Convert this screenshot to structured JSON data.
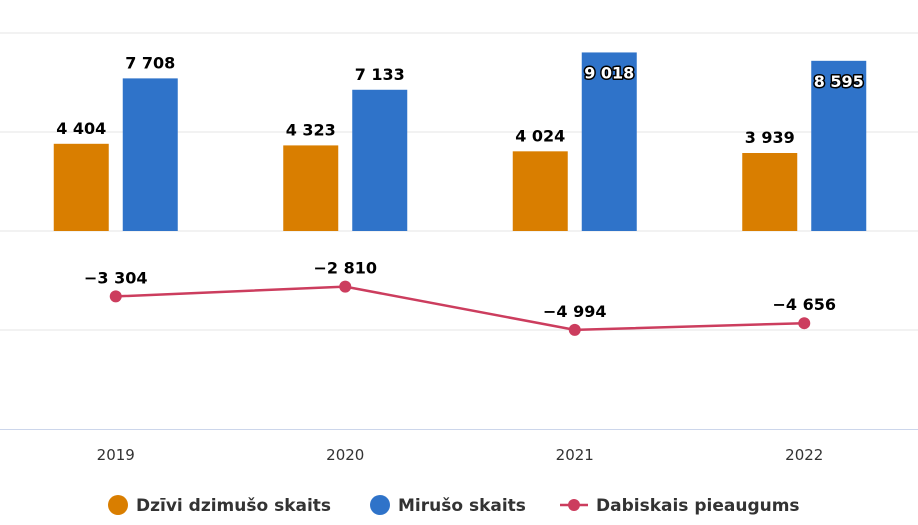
{
  "chart_data": {
    "type": "bar",
    "categories": [
      "2019",
      "2020",
      "2021",
      "2022"
    ],
    "bar_series": [
      {
        "name": "Dzīvi dzimušo skaits",
        "values": [
          4404,
          4323,
          4024,
          3939
        ],
        "labels": [
          "4 404",
          "4 323",
          "4 024",
          "3 939"
        ],
        "color": "#d97e00"
      },
      {
        "name": "Mirušo skaits",
        "values": [
          7708,
          7133,
          9018,
          8595
        ],
        "labels": [
          "7 708",
          "7 133",
          "9 018",
          "8 595"
        ],
        "color": "#2f73c9"
      }
    ],
    "line_series": {
      "name": "Dabiskais pieaugums",
      "values": [
        -3304,
        -2810,
        -4994,
        -4656
      ],
      "labels": [
        "−3 304",
        "−2 810",
        "−4 994",
        "−4 656"
      ],
      "color": "#cc3d5e"
    },
    "bar_ylim": [
      0,
      10000
    ],
    "line_ylim": [
      -10000,
      0
    ],
    "grid": true,
    "legend_position": "bottom-center"
  }
}
